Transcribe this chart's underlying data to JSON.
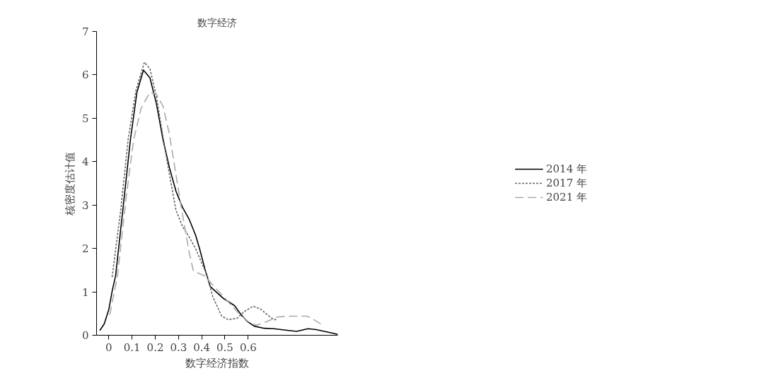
{
  "chart_data": {
    "type": "line",
    "title": "数字经济",
    "xlabel": "数字经济指数",
    "ylabel": "核密度估计值",
    "xlim": [
      -0.053,
      0.986
    ],
    "ylim": [
      0,
      7
    ],
    "xticks": [
      0,
      0.1,
      0.2,
      0.3,
      0.4,
      0.5,
      0.6
    ],
    "yticks": [
      0,
      1,
      2,
      3,
      4,
      5,
      6,
      7
    ],
    "grid": false,
    "legend": "right",
    "marker": "none",
    "series": [
      {
        "name": "2014 年",
        "color": "#000000",
        "line_style": "solid",
        "x": [
          -0.039,
          -0.02,
          0.0,
          0.015,
          0.029,
          0.06,
          0.093,
          0.121,
          0.149,
          0.177,
          0.205,
          0.233,
          0.261,
          0.289,
          0.317,
          0.346,
          0.374,
          0.392,
          0.416,
          0.437,
          0.493,
          0.542,
          0.57,
          0.598,
          0.626,
          0.669,
          0.711,
          0.774,
          0.809,
          0.858,
          0.893,
          0.935,
          0.963,
          0.986
        ],
        "values": [
          0.11,
          0.26,
          0.6,
          1.04,
          1.37,
          2.88,
          4.51,
          5.6,
          6.11,
          5.93,
          5.33,
          4.51,
          3.86,
          3.32,
          2.95,
          2.67,
          2.3,
          1.97,
          1.48,
          1.12,
          0.85,
          0.68,
          0.47,
          0.31,
          0.21,
          0.16,
          0.15,
          0.11,
          0.09,
          0.15,
          0.13,
          0.08,
          0.05,
          0.02
        ]
      },
      {
        "name": "2017 年",
        "color": "#666666",
        "line_style": "dotted",
        "x": [
          0.014,
          0.051,
          0.083,
          0.117,
          0.153,
          0.177,
          0.205,
          0.233,
          0.261,
          0.289,
          0.317,
          0.346,
          0.374,
          0.402,
          0.42,
          0.448,
          0.486,
          0.514,
          0.552,
          0.584,
          0.622,
          0.654,
          0.683,
          0.711,
          0.725
        ],
        "values": [
          1.34,
          2.88,
          4.51,
          5.65,
          6.29,
          6.14,
          5.49,
          4.58,
          3.7,
          2.88,
          2.51,
          2.26,
          1.99,
          1.64,
          1.42,
          0.88,
          0.44,
          0.36,
          0.39,
          0.55,
          0.67,
          0.6,
          0.47,
          0.36,
          0.36
        ]
      },
      {
        "name": "2021 年",
        "color": "#aaaaaa",
        "line_style": "dashed",
        "x": [
          0.004,
          0.037,
          0.074,
          0.107,
          0.139,
          0.177,
          0.205,
          0.233,
          0.261,
          0.289,
          0.317,
          0.346,
          0.364,
          0.412,
          0.459,
          0.514,
          0.56,
          0.608,
          0.636,
          0.678,
          0.725,
          0.771,
          0.819,
          0.855,
          0.889,
          0.921
        ],
        "values": [
          0.47,
          1.37,
          3.16,
          4.51,
          5.23,
          5.6,
          5.55,
          5.28,
          4.63,
          3.7,
          2.79,
          1.91,
          1.48,
          1.37,
          1.09,
          0.77,
          0.5,
          0.28,
          0.23,
          0.31,
          0.42,
          0.44,
          0.44,
          0.44,
          0.34,
          0.23
        ]
      }
    ]
  }
}
